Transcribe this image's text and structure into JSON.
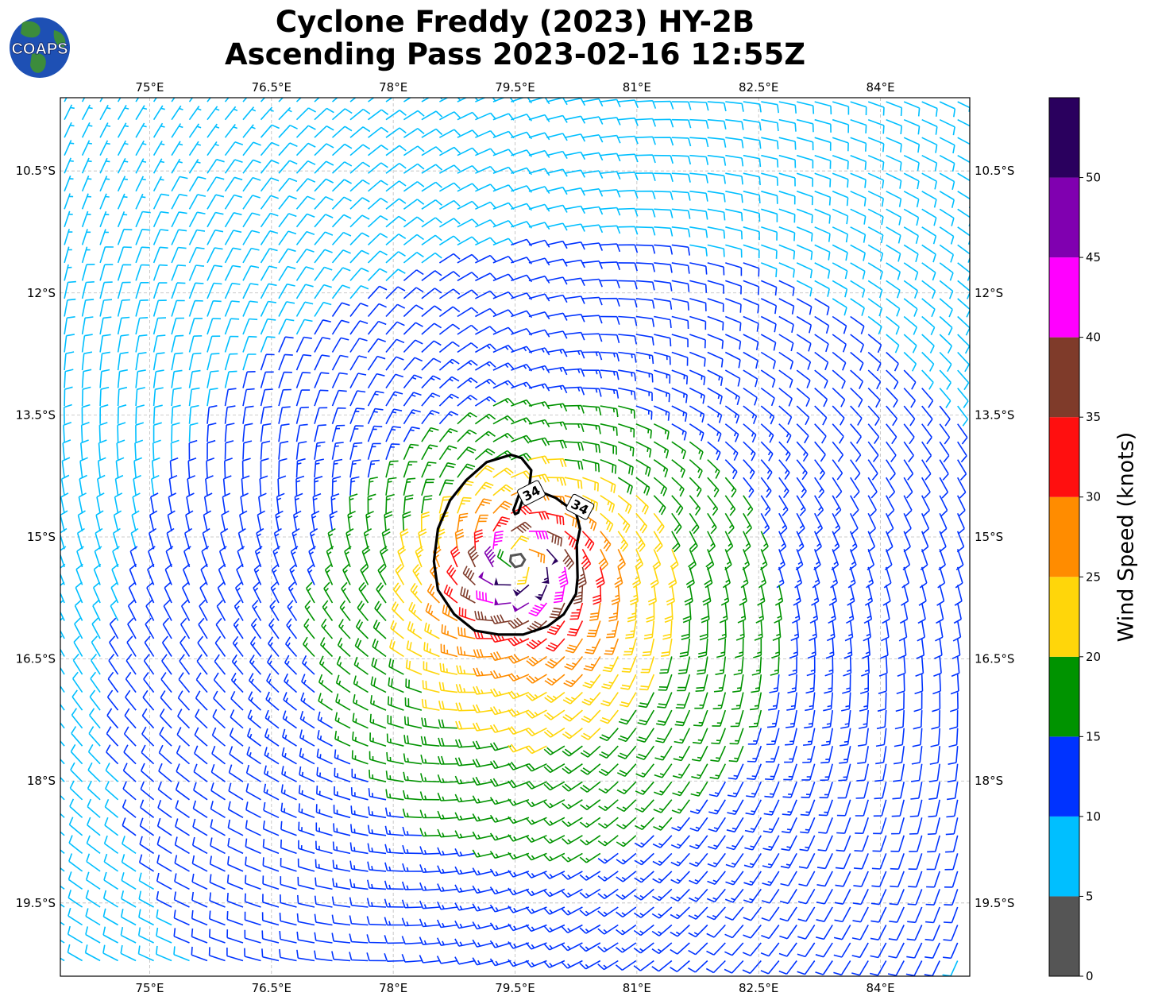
{
  "title": {
    "line1": "Cyclone Freddy (2023) HY-2B",
    "line2": "Ascending Pass 2023-02-16 12:55Z"
  },
  "logo": {
    "text": "COAPS",
    "icon": "globe-icon",
    "ocean": "#1e50b4",
    "land": "#3c8c3c"
  },
  "map": {
    "projection": "PlateCarree",
    "extent": {
      "lon": [
        73.9,
        85.1
      ],
      "lat": [
        -20.4,
        -9.6
      ]
    },
    "lon_ticks": [
      {
        "value": 75,
        "label": "75°E"
      },
      {
        "value": 76.5,
        "label": "76.5°E"
      },
      {
        "value": 78,
        "label": "78°E"
      },
      {
        "value": 79.5,
        "label": "79.5°E"
      },
      {
        "value": 81,
        "label": "81°E"
      },
      {
        "value": 82.5,
        "label": "82.5°E"
      },
      {
        "value": 84,
        "label": "84°E"
      }
    ],
    "lat_ticks": [
      {
        "value": -10.5,
        "label": "10.5°S"
      },
      {
        "value": -12,
        "label": "12°S"
      },
      {
        "value": -13.5,
        "label": "13.5°S"
      },
      {
        "value": -15,
        "label": "15°S"
      },
      {
        "value": -16.5,
        "label": "16.5°S"
      },
      {
        "value": -18,
        "label": "18°S"
      },
      {
        "value": -19.5,
        "label": "19.5°S"
      }
    ],
    "gridlines": true,
    "wind_barbs": {
      "center": {
        "lon": 79.55,
        "lat": -15.3
      },
      "rotation": "clockwise",
      "grid_spacing_deg": 0.22,
      "units": "knots"
    },
    "contours": [
      {
        "level": 34,
        "label": "34",
        "color": "#000000"
      },
      {
        "level": 50,
        "label": "",
        "color": "#555555"
      }
    ]
  },
  "colorbar": {
    "label": "Wind Speed (knots)",
    "bins": [
      {
        "min": 0,
        "max": 5,
        "color": "#555555"
      },
      {
        "min": 5,
        "max": 10,
        "color": "#00bfff"
      },
      {
        "min": 10,
        "max": 15,
        "color": "#0033ff"
      },
      {
        "min": 15,
        "max": 20,
        "color": "#009300"
      },
      {
        "min": 20,
        "max": 25,
        "color": "#ffd60a"
      },
      {
        "min": 25,
        "max": 30,
        "color": "#ff8c00"
      },
      {
        "min": 30,
        "max": 35,
        "color": "#ff0f0f"
      },
      {
        "min": 35,
        "max": 40,
        "color": "#7f3b2a"
      },
      {
        "min": 40,
        "max": 45,
        "color": "#ff00ff"
      },
      {
        "min": 45,
        "max": 50,
        "color": "#8000b0"
      },
      {
        "min": 50,
        "max": 55,
        "color": "#2a005e"
      }
    ],
    "tick_labels": [
      "0",
      "5",
      "10",
      "15",
      "20",
      "25",
      "30",
      "35",
      "40",
      "45",
      "50"
    ]
  }
}
